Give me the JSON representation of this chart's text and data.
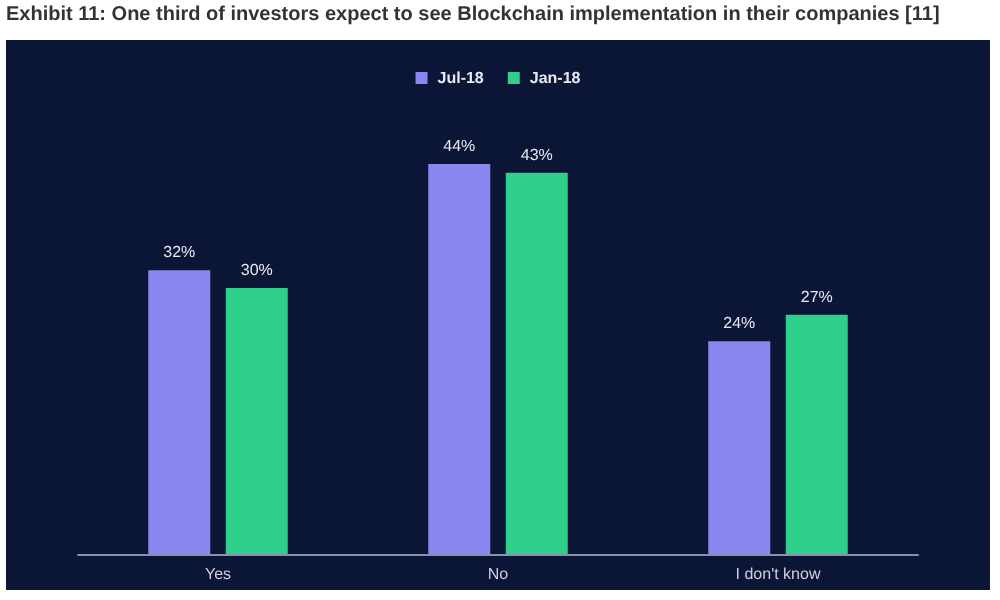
{
  "chart_data": {
    "type": "bar",
    "title": "Exhibit 11: One third of investors expect to see Blockchain implementation in their companies [11]",
    "categories": [
      "Yes",
      "No",
      "I don't know"
    ],
    "series": [
      {
        "name": "Jul-18",
        "color": "#8a86f0",
        "values": [
          32,
          44,
          24
        ],
        "value_labels": [
          "32%",
          "44%",
          "24%"
        ]
      },
      {
        "name": "Jan-18",
        "color": "#2fcf8c",
        "values": [
          30,
          43,
          27
        ],
        "value_labels": [
          "30%",
          "43%",
          "27%"
        ]
      }
    ],
    "legend": "top"
  }
}
